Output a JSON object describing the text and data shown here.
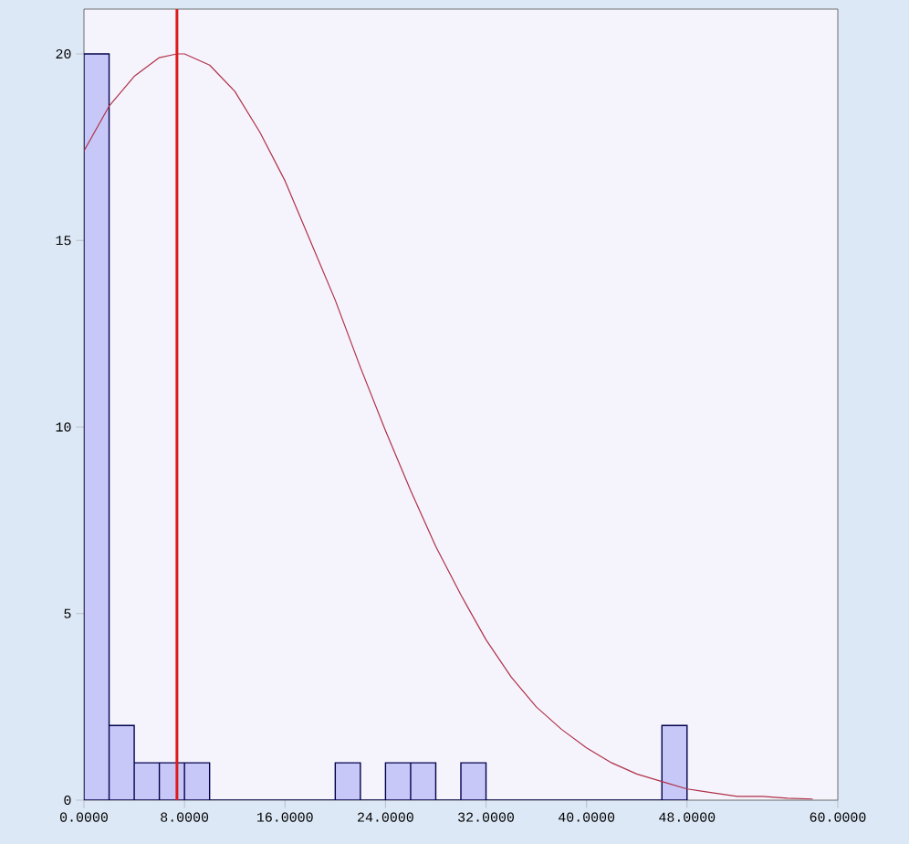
{
  "chart_data": {
    "type": "histogram",
    "bins": [
      0,
      2,
      4,
      6,
      8,
      10,
      12,
      14,
      16,
      18,
      20,
      22,
      24,
      26,
      28,
      30,
      32,
      34,
      36,
      38,
      40,
      42,
      44,
      46,
      48
    ],
    "values": [
      20,
      2,
      1,
      1,
      1,
      0,
      0,
      0,
      0,
      0,
      1,
      0,
      1,
      1,
      0,
      1,
      0,
      0,
      0,
      0,
      0,
      0,
      0,
      2
    ],
    "color": "#c8c8f8",
    "series": [
      {
        "type": "line",
        "color": "#b03048",
        "x": [
          0,
          2,
          4,
          6,
          7.4,
          8,
          10,
          12,
          14,
          16,
          18,
          20,
          22,
          24,
          26,
          28,
          30,
          32,
          34,
          36,
          38,
          40,
          42,
          44,
          46,
          48,
          50,
          52,
          54,
          56,
          58
        ],
        "values": [
          17.4,
          18.6,
          19.4,
          19.9,
          20,
          20,
          19.7,
          19,
          17.9,
          16.6,
          15,
          13.4,
          11.6,
          9.9,
          8.3,
          6.8,
          5.5,
          4.3,
          3.3,
          2.5,
          1.9,
          1.4,
          1,
          0.7,
          0.5,
          0.3,
          0.2,
          0.1,
          0.1,
          0.05,
          0.03
        ]
      }
    ],
    "ref_lines": [
      {
        "axis": "x",
        "value": 7.4,
        "color": "#dd1a1a"
      }
    ],
    "xlim": [
      0,
      60
    ],
    "ylim": [
      0,
      21.2
    ],
    "xticks": [
      {
        "value": 0,
        "label": "0.0000"
      },
      {
        "value": 8,
        "label": "8.0000"
      },
      {
        "value": 16,
        "label": "16.0000"
      },
      {
        "value": 24,
        "label": "24.0000"
      },
      {
        "value": 32,
        "label": "32.0000"
      },
      {
        "value": 40,
        "label": "40.0000"
      },
      {
        "value": 48,
        "label": "48.0000"
      },
      {
        "value": 60,
        "label": "60.0000"
      }
    ],
    "yticks": [
      0,
      5,
      10,
      15,
      20
    ]
  }
}
